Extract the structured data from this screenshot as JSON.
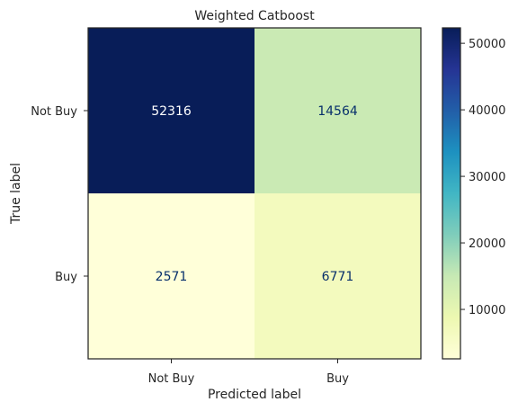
{
  "chart_data": {
    "type": "heatmap",
    "title": "Weighted Catboost",
    "xlabel": "Predicted label",
    "ylabel": "True label",
    "x_categories": [
      "Not Buy",
      "Buy"
    ],
    "y_categories": [
      "Not Buy",
      "Buy"
    ],
    "values": [
      [
        52316,
        14564
      ],
      [
        2571,
        6771
      ]
    ],
    "colormap": "YlGnBu",
    "colorbar": {
      "min": 2571,
      "max": 52316,
      "ticks": [
        10000,
        20000,
        30000,
        40000,
        50000
      ],
      "tick_labels": [
        "10000",
        "20000",
        "30000",
        "40000",
        "50000"
      ]
    },
    "cell_text_colors": {
      "dark": "#ffffff",
      "light": "#08306b"
    },
    "grid": false
  }
}
